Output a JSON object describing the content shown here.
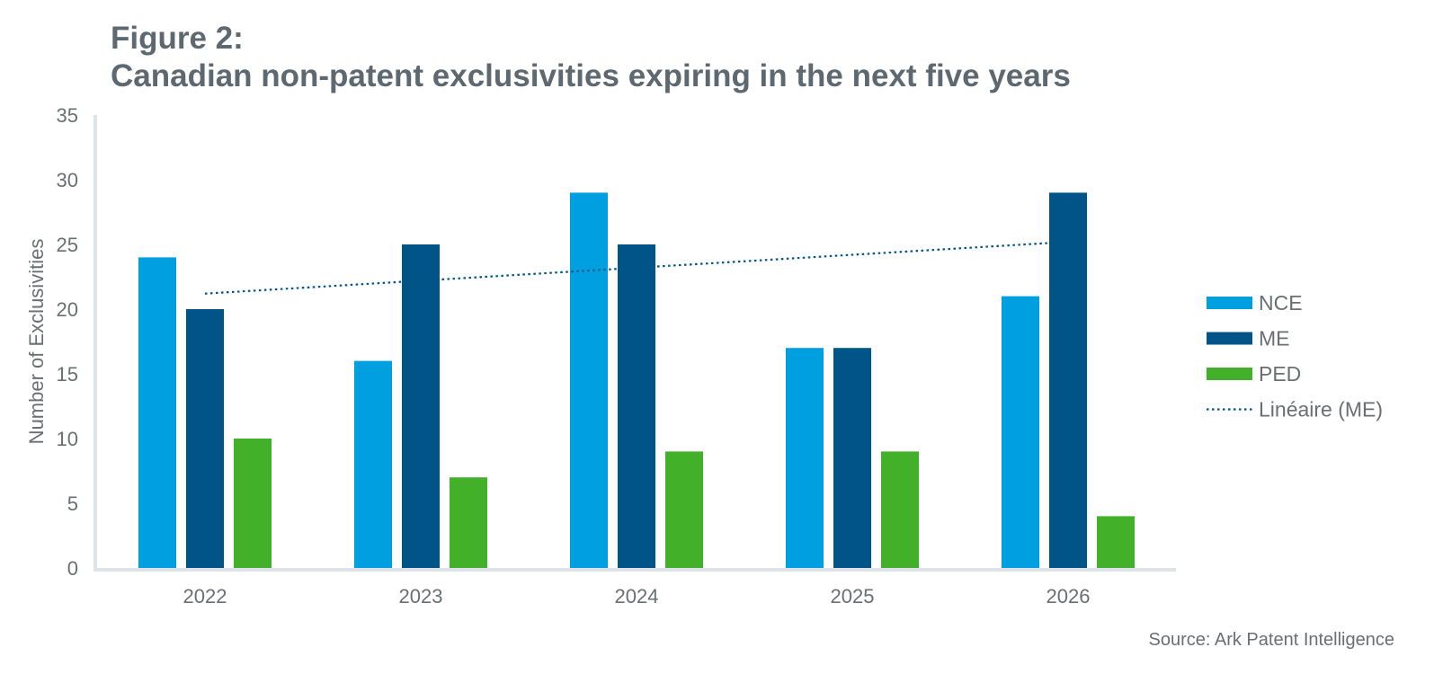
{
  "title_line1": "Figure 2:",
  "title_line2": "Canadian non-patent exclusivities expiring in the next five years",
  "source": "Source: Ark Patent Intelligence",
  "chart_data": {
    "type": "bar",
    "categories": [
      "2022",
      "2023",
      "2024",
      "2025",
      "2026"
    ],
    "series": [
      {
        "name": "NCE",
        "color": "#009fe0",
        "values": [
          24,
          16,
          29,
          17,
          21
        ]
      },
      {
        "name": "ME",
        "color": "#005487",
        "values": [
          20,
          25,
          25,
          17,
          29
        ]
      },
      {
        "name": "PED",
        "color": "#43b02a",
        "values": [
          10,
          7,
          9,
          9,
          4
        ]
      }
    ],
    "trendline": {
      "name": "Linéaire (ME)",
      "series": "ME",
      "color": "#005487",
      "style": "dotted"
    },
    "ylabel": "Number of Exclusivities",
    "xlabel": "",
    "ylim": [
      0,
      35
    ],
    "yticks": [
      0,
      5,
      10,
      15,
      20,
      25,
      30,
      35
    ],
    "grid": false,
    "legend_position": "right"
  }
}
